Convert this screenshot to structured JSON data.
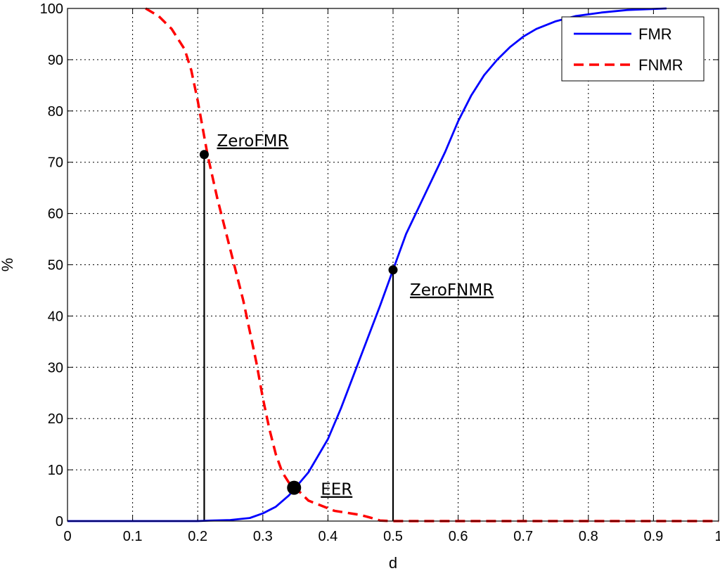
{
  "chart_data": {
    "type": "line",
    "xlabel": "d",
    "ylabel": "%",
    "xlim": [
      0,
      1
    ],
    "ylim": [
      0,
      100
    ],
    "x_ticks": [
      "0",
      "0.1",
      "0.2",
      "0.3",
      "0.4",
      "0.5",
      "0.6",
      "0.7",
      "0.8",
      "0.9",
      "1"
    ],
    "y_ticks": [
      "0",
      "10",
      "20",
      "30",
      "40",
      "50",
      "60",
      "70",
      "80",
      "90",
      "100"
    ],
    "grid": true,
    "legend_position": "top-right",
    "series": [
      {
        "name": "FMR",
        "color": "#0000ff",
        "style": "solid",
        "points": [
          [
            0,
            0
          ],
          [
            0.1,
            0
          ],
          [
            0.2,
            0
          ],
          [
            0.22,
            0.1
          ],
          [
            0.25,
            0.2
          ],
          [
            0.28,
            0.6
          ],
          [
            0.3,
            1.5
          ],
          [
            0.32,
            2.8
          ],
          [
            0.34,
            5
          ],
          [
            0.35,
            6.5
          ],
          [
            0.37,
            9.5
          ],
          [
            0.4,
            16
          ],
          [
            0.42,
            22
          ],
          [
            0.45,
            32
          ],
          [
            0.48,
            42
          ],
          [
            0.5,
            49
          ],
          [
            0.52,
            56
          ],
          [
            0.55,
            64
          ],
          [
            0.58,
            72
          ],
          [
            0.6,
            78
          ],
          [
            0.62,
            83
          ],
          [
            0.64,
            87
          ],
          [
            0.66,
            90
          ],
          [
            0.68,
            92.5
          ],
          [
            0.7,
            94.5
          ],
          [
            0.72,
            96
          ],
          [
            0.75,
            97.5
          ],
          [
            0.78,
            98.5
          ],
          [
            0.82,
            99.2
          ],
          [
            0.86,
            99.7
          ],
          [
            0.9,
            99.9
          ],
          [
            0.92,
            100
          ]
        ]
      },
      {
        "name": "FNMR",
        "color": "#ff0000",
        "style": "dashed",
        "points": [
          [
            0.12,
            100
          ],
          [
            0.14,
            98.5
          ],
          [
            0.16,
            96
          ],
          [
            0.18,
            92
          ],
          [
            0.19,
            88
          ],
          [
            0.2,
            82
          ],
          [
            0.21,
            75
          ],
          [
            0.215,
            71.5
          ],
          [
            0.23,
            63
          ],
          [
            0.25,
            53
          ],
          [
            0.27,
            43
          ],
          [
            0.28,
            37
          ],
          [
            0.29,
            31
          ],
          [
            0.3,
            24
          ],
          [
            0.31,
            18
          ],
          [
            0.32,
            13
          ],
          [
            0.33,
            9.5
          ],
          [
            0.34,
            7.5
          ],
          [
            0.35,
            6.5
          ],
          [
            0.37,
            4
          ],
          [
            0.39,
            3
          ],
          [
            0.41,
            2
          ],
          [
            0.43,
            1.6
          ],
          [
            0.45,
            1.2
          ],
          [
            0.47,
            0.5
          ],
          [
            0.48,
            0.1
          ],
          [
            0.5,
            0
          ],
          [
            1,
            0
          ]
        ]
      }
    ],
    "annotations": [
      {
        "label": "ZeroFMR",
        "x": 0.21,
        "y": 71.5
      },
      {
        "label": "EER",
        "x": 0.348,
        "y": 6.5
      },
      {
        "label": "ZeroFNMR",
        "x": 0.5,
        "y": 49
      }
    ]
  }
}
